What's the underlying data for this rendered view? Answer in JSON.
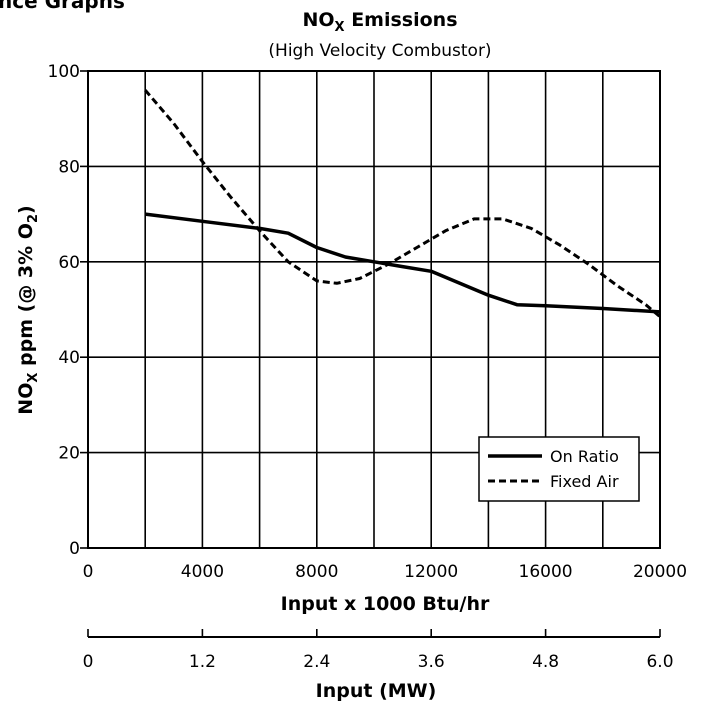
{
  "header_partial": "nce Graphs",
  "chart_data": {
    "type": "line",
    "title": {
      "main": "NO",
      "sub": "X",
      "rest": " Emissions"
    },
    "subtitle": "(High Velocity Combustor)",
    "ylabel": {
      "a": "NO",
      "a_sub": "X",
      "b": " ppm (@ 3% O",
      "b_sub": "2",
      "c": ")"
    },
    "xlabel": "Input x 1000 Btu/hr",
    "xlim": [
      0,
      20000
    ],
    "ylim": [
      0,
      100
    ],
    "x_ticks": [
      0,
      4000,
      8000,
      12000,
      16000,
      20000
    ],
    "x_tick_labels": [
      "0",
      "4000",
      "8000",
      "12000",
      "16000",
      "20000"
    ],
    "y_ticks": [
      0,
      20,
      40,
      60,
      80,
      100
    ],
    "y_tick_labels": [
      "0",
      "20",
      "40",
      "60",
      "80",
      "100"
    ],
    "grid": true,
    "grid_x": [
      2000,
      4000,
      6000,
      8000,
      10000,
      12000,
      14000,
      16000,
      18000,
      20000
    ],
    "grid_y": [
      20,
      40,
      60,
      80
    ],
    "legend_position": "bottom-right",
    "series": [
      {
        "name": "On Ratio",
        "style": "solid",
        "color": "#000000",
        "x": [
          2000,
          4000,
          6000,
          7000,
          8000,
          9000,
          10000,
          11000,
          12000,
          13000,
          14000,
          15000,
          16000,
          18000,
          20000
        ],
        "y": [
          70,
          68.5,
          67,
          66,
          63,
          61,
          60,
          59,
          58,
          55.5,
          53,
          51,
          50.8,
          50.2,
          49.5
        ]
      },
      {
        "name": "Fixed Air",
        "style": "dashed",
        "color": "#000000",
        "x": [
          2000,
          3000,
          4000,
          5000,
          6000,
          7000,
          8000,
          8700,
          9500,
          10500,
          11500,
          12500,
          13500,
          14500,
          15500,
          16500,
          17500,
          18500,
          19500,
          20000
        ],
        "y": [
          96,
          89,
          81,
          73.5,
          66.5,
          60,
          56,
          55.5,
          56.5,
          59.5,
          63,
          66.5,
          69,
          69,
          67,
          63.5,
          59.5,
          55,
          51,
          48.5
        ]
      }
    ],
    "secondary_axis": {
      "label": "Input (MW)",
      "ticks": [
        0,
        1.2,
        2.4,
        3.6,
        4.8,
        6.0
      ],
      "tick_labels": [
        "0",
        "1.2",
        "2.4",
        "3.6",
        "4.8",
        "6.0"
      ],
      "range": [
        0,
        6.0
      ]
    }
  }
}
